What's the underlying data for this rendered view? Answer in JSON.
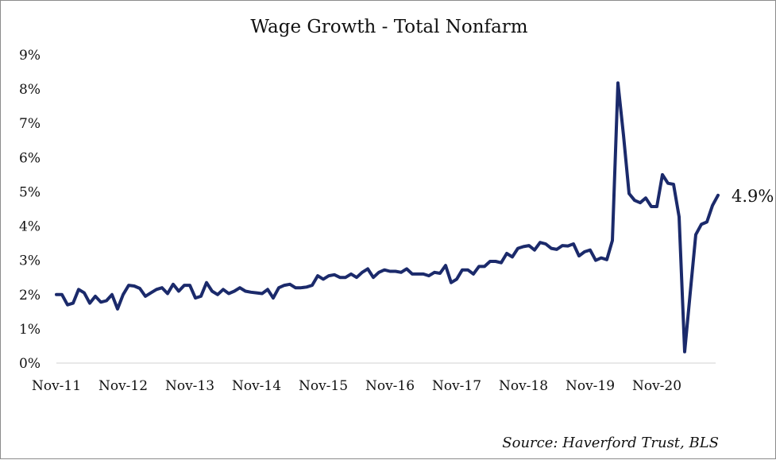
{
  "chart_data": {
    "type": "line",
    "title": "Wage Growth - Total Nonfarm",
    "xlabel": "",
    "ylabel": "",
    "source": "Source: Haverford Trust, BLS",
    "annotation": "4.9%",
    "ylim": [
      0,
      9
    ],
    "y_ticks": [
      0,
      1,
      2,
      3,
      4,
      5,
      6,
      7,
      8,
      9
    ],
    "y_tick_labels": [
      "0%",
      "1%",
      "2%",
      "3%",
      "4%",
      "5%",
      "6%",
      "7%",
      "8%",
      "9%"
    ],
    "x_tick_labels": [
      "Nov-11",
      "Nov-12",
      "Nov-13",
      "Nov-14",
      "Nov-15",
      "Nov-16",
      "Nov-17",
      "Nov-18",
      "Nov-19",
      "Nov-20"
    ],
    "x_start": "Nov-11",
    "x_end": "Jul-21",
    "grid": false,
    "line_color": "#1b2a6b",
    "series": [
      {
        "values": [
          2.0,
          2.0,
          1.7,
          1.75,
          2.15,
          2.05,
          1.75,
          1.95,
          1.78,
          1.82,
          2.0,
          1.58,
          2.0,
          2.27,
          2.25,
          2.18,
          1.95,
          2.05,
          2.15,
          2.2,
          2.03,
          2.3,
          2.1,
          2.27,
          2.27,
          1.9,
          1.95,
          2.35,
          2.1,
          2.0,
          2.15,
          2.03,
          2.1,
          2.2,
          2.1,
          2.07,
          2.05,
          2.03,
          2.15,
          1.9,
          2.2,
          2.27,
          2.3,
          2.2,
          2.2,
          2.22,
          2.27,
          2.55,
          2.45,
          2.55,
          2.58,
          2.5,
          2.5,
          2.6,
          2.5,
          2.65,
          2.75,
          2.5,
          2.65,
          2.72,
          2.68,
          2.68,
          2.65,
          2.75,
          2.6,
          2.6,
          2.6,
          2.55,
          2.65,
          2.62,
          2.85,
          2.35,
          2.45,
          2.72,
          2.72,
          2.6,
          2.82,
          2.82,
          2.97,
          2.97,
          2.93,
          3.2,
          3.1,
          3.35,
          3.4,
          3.43,
          3.3,
          3.52,
          3.48,
          3.35,
          3.32,
          3.43,
          3.42,
          3.48,
          3.13,
          3.25,
          3.3,
          3.0,
          3.07,
          3.02,
          3.58,
          8.18,
          6.65,
          4.95,
          4.75,
          4.68,
          4.82,
          4.57,
          4.57,
          5.5,
          5.25,
          5.22,
          4.27,
          0.33,
          2.05,
          3.75,
          4.05,
          4.12,
          4.6,
          4.9
        ]
      }
    ]
  }
}
